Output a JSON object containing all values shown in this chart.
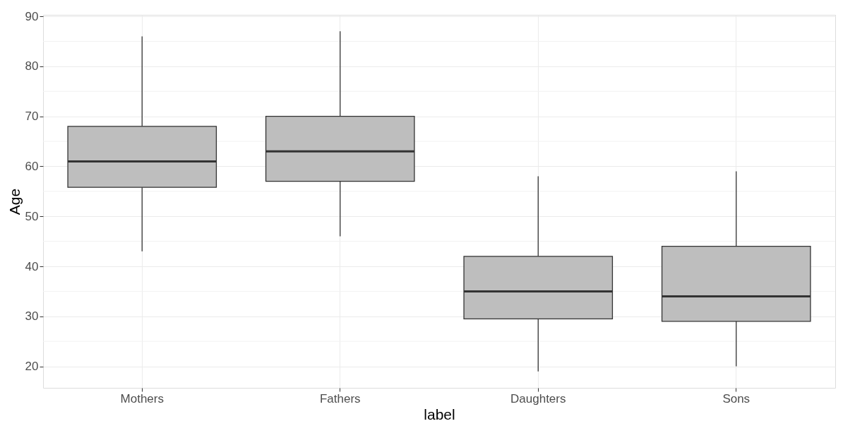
{
  "chart_data": {
    "type": "box",
    "xlabel": "label",
    "ylabel": "Age",
    "categories": [
      "Mothers",
      "Fathers",
      "Daughters",
      "Sons"
    ],
    "boxes": [
      {
        "low": 43,
        "q1": 55.8,
        "median": 61,
        "q3": 68,
        "high": 86
      },
      {
        "low": 46,
        "q1": 57,
        "median": 63,
        "q3": 70,
        "high": 87
      },
      {
        "low": 19,
        "q1": 29.5,
        "median": 35,
        "q3": 42,
        "high": 58
      },
      {
        "low": 20,
        "q1": 29,
        "median": 34,
        "q3": 44,
        "high": 59
      }
    ],
    "color": "#bebebe",
    "ylim": [
      15.7,
      90.3
    ],
    "yticks": [
      20,
      30,
      40,
      50,
      60,
      70,
      80,
      90
    ],
    "grid": true
  }
}
